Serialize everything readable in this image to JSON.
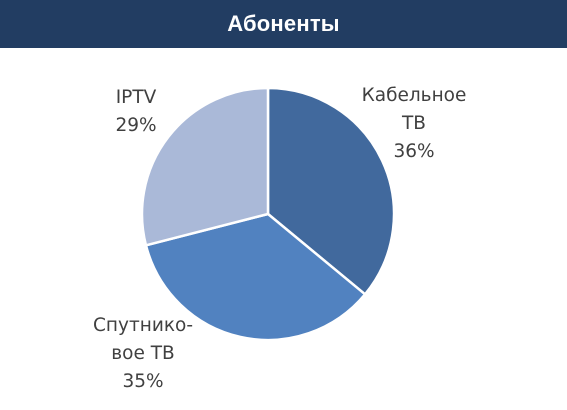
{
  "header": {
    "title": "Абоненты"
  },
  "chart_data": {
    "type": "pie",
    "title": "Абоненты",
    "slices": [
      {
        "label_lines": [
          "Кабельное",
          "ТВ"
        ],
        "value": 36,
        "value_label": "36%",
        "color": "#41699d"
      },
      {
        "label_lines": [
          "Спутнико-",
          "вое ТВ"
        ],
        "value": 35,
        "value_label": "35%",
        "color": "#5182c0"
      },
      {
        "label_lines": [
          "IPTV"
        ],
        "value": 29,
        "value_label": "29%",
        "color": "#aab9d8"
      }
    ],
    "start_angle_deg": 0,
    "direction": "clockwise",
    "legend": "none"
  }
}
